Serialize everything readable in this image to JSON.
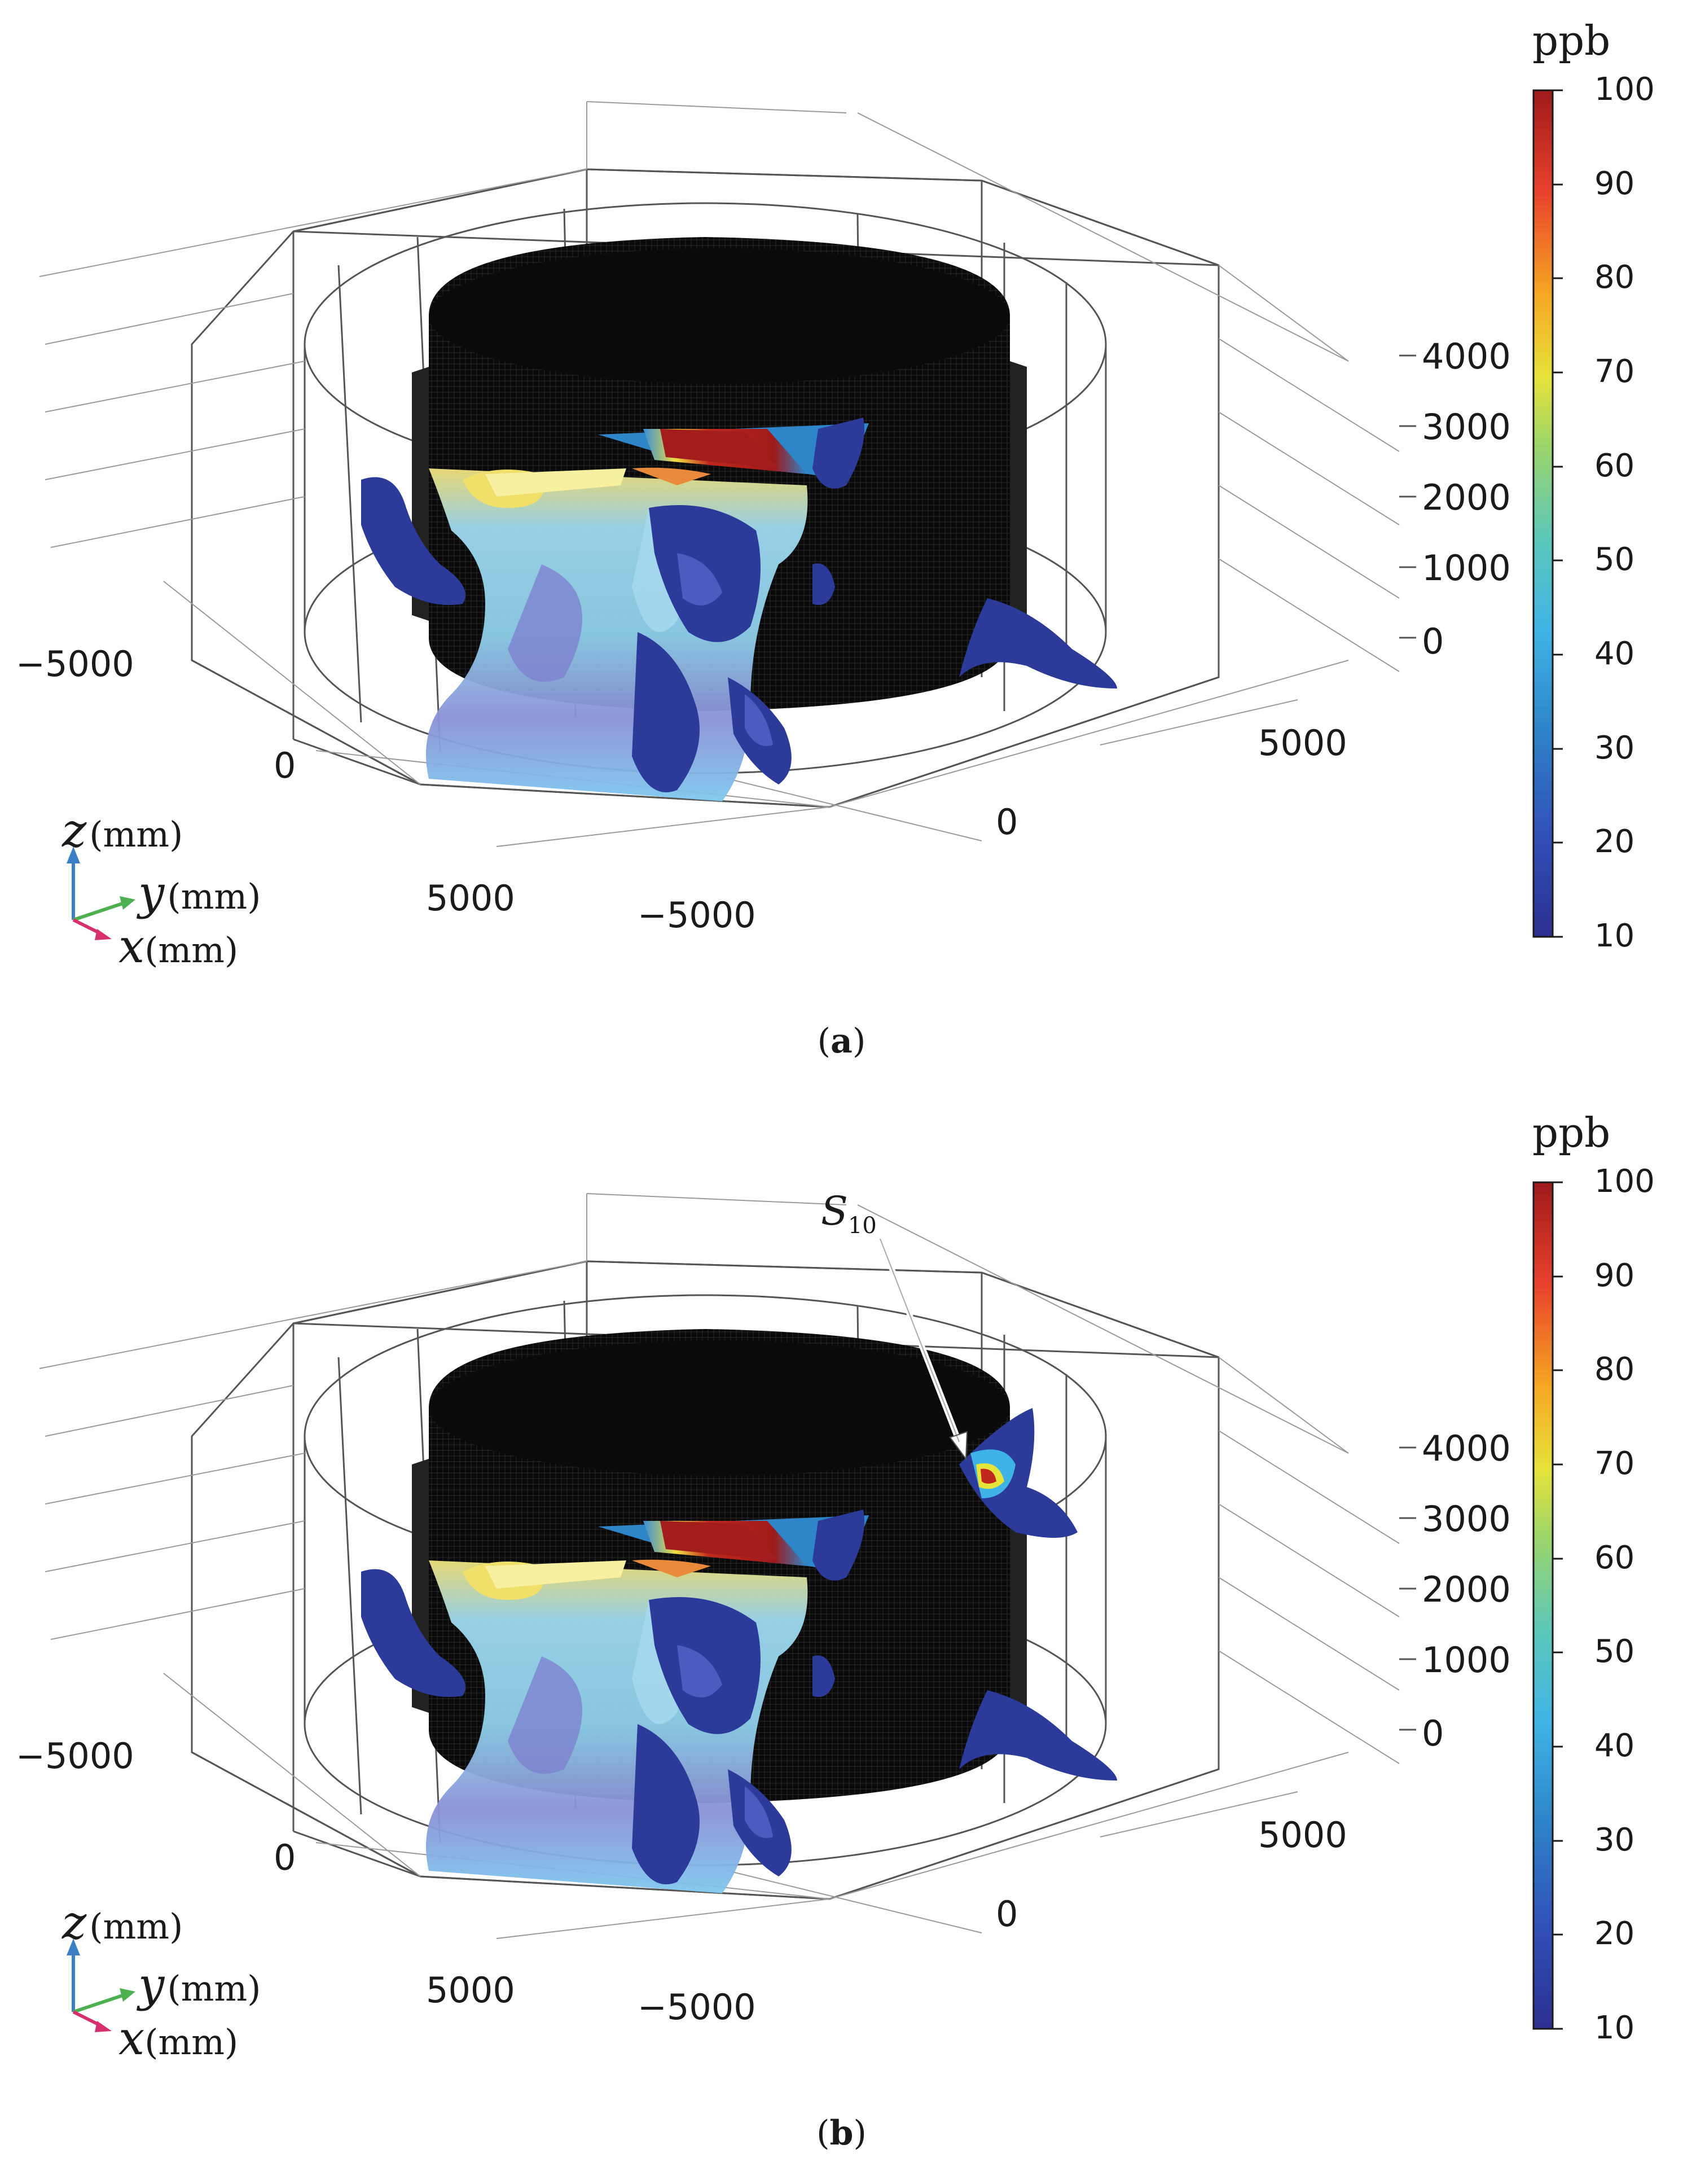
{
  "figure": {
    "panels": [
      {
        "id": "a",
        "caption_label": "a",
        "colorbar": {
          "unit": "ppb",
          "ticks": [
            "100",
            "90",
            "80",
            "70",
            "60",
            "50",
            "40",
            "30",
            "20",
            "10"
          ],
          "min": 10,
          "max": 100
        },
        "z_ticks": [
          "4000",
          "3000",
          "2000",
          "1000",
          "0"
        ],
        "x_ticks": [
          "-5000",
          "0",
          "5000"
        ],
        "y_ticks": [
          "-5000",
          "0",
          "5000"
        ],
        "axes": {
          "z": "z",
          "y": "y",
          "x": "x",
          "unit": "(mm)"
        }
      },
      {
        "id": "b",
        "caption_label": "b",
        "colorbar": {
          "unit": "ppb",
          "ticks": [
            "100",
            "90",
            "80",
            "70",
            "60",
            "50",
            "40",
            "30",
            "20",
            "10"
          ],
          "min": 10,
          "max": 100
        },
        "z_ticks": [
          "4000",
          "3000",
          "2000",
          "1000",
          "0"
        ],
        "x_ticks": [
          "-5000",
          "0",
          "5000"
        ],
        "y_ticks": [
          "-5000",
          "0",
          "5000"
        ],
        "axes": {
          "z": "z",
          "y": "y",
          "x": "x",
          "unit": "(mm)"
        },
        "annotation": {
          "symbol": "S",
          "subscript": "10"
        }
      }
    ],
    "colors": {
      "wire": "#555555",
      "cylinder": "#0a0a0a",
      "arrow_z": "#3b7fc4",
      "arrow_y": "#4caf50",
      "arrow_x": "#d62f6e"
    },
    "colormap": [
      "#2b2f8f",
      "#3050b8",
      "#2e86c9",
      "#3fb3e6",
      "#5cc7b9",
      "#8fd36a",
      "#e6e33a",
      "#f5a623",
      "#e8412c",
      "#a31d1d"
    ]
  }
}
